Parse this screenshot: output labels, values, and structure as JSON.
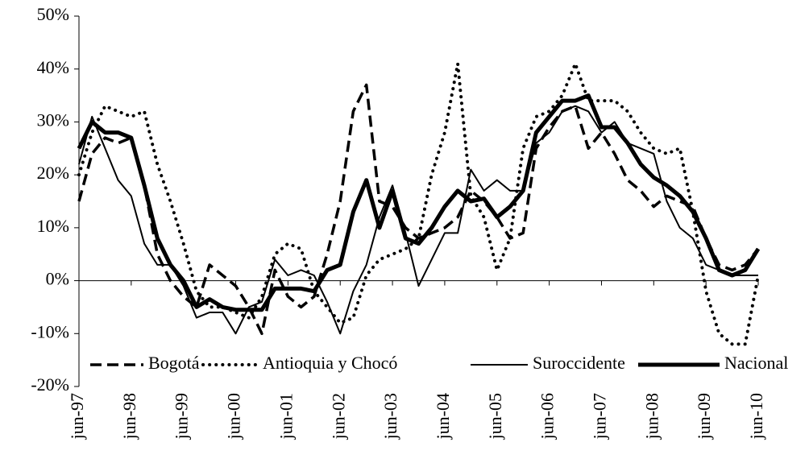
{
  "chart_data": {
    "type": "line",
    "categories": [
      "jun-97",
      null,
      null,
      null,
      "jun-98",
      null,
      null,
      null,
      "jun-99",
      null,
      null,
      null,
      "jun-00",
      null,
      null,
      null,
      "jun-01",
      null,
      null,
      null,
      "jun-02",
      null,
      null,
      null,
      "jun-03",
      null,
      null,
      null,
      "jun-04",
      null,
      null,
      null,
      "jun-05",
      null,
      null,
      null,
      "jun-06",
      null,
      null,
      null,
      "jun-07",
      null,
      null,
      null,
      "jun-08",
      null,
      null,
      null,
      "jun-09",
      null,
      null,
      null,
      "jun-10"
    ],
    "series": [
      {
        "name": "Bogotá",
        "color": "#000000",
        "line_style": "dashed",
        "values": [
          15,
          24,
          27,
          26,
          27,
          18,
          5,
          0,
          -3,
          -5,
          3,
          1,
          -1,
          -5,
          -10,
          2,
          -3,
          -5,
          -3,
          5,
          15,
          32,
          37,
          15,
          14,
          10,
          8,
          9,
          10,
          12,
          17,
          15,
          12,
          8,
          9,
          25,
          29,
          32,
          33,
          25,
          28,
          24,
          19,
          17,
          14,
          16,
          15,
          14,
          8,
          3,
          2,
          3,
          6
        ]
      },
      {
        "name": "Antioquia y Chocó",
        "color": "#000000",
        "line_style": "dotted",
        "values": [
          20,
          28,
          33,
          32,
          31,
          32,
          22,
          15,
          7,
          -2,
          -5,
          -5,
          -6,
          -7,
          -3,
          5,
          7,
          6,
          -2,
          -5,
          -8,
          -7,
          1,
          4,
          5,
          6,
          8,
          20,
          28,
          41,
          16,
          12,
          2,
          8,
          25,
          31,
          32,
          35,
          41,
          34,
          34,
          34,
          32,
          28,
          25,
          24,
          25,
          13,
          -2,
          -10,
          -12,
          -12,
          1
        ]
      },
      {
        "name": "Suroccidente",
        "color": "#000000",
        "line_style": "solid",
        "values": [
          22,
          31,
          25,
          19,
          16,
          7,
          3,
          3,
          -1,
          -7,
          -6,
          -6,
          -10,
          -5,
          -4,
          4,
          1,
          2,
          1,
          -4,
          -10,
          -2,
          3,
          12,
          18,
          9,
          -1,
          4,
          9,
          9,
          21,
          17,
          19,
          17,
          17,
          26,
          28,
          32,
          33,
          32,
          28,
          30,
          26,
          25,
          24,
          15,
          10,
          8,
          3,
          2,
          1,
          1,
          1
        ]
      },
      {
        "name": "Nacional",
        "color": "#000000",
        "line_style": "thick",
        "values": [
          25,
          30,
          28,
          28,
          27,
          18,
          8,
          3,
          0,
          -5,
          -3.5,
          -5,
          -5.5,
          -5.5,
          -5.5,
          -1.5,
          -1.5,
          -1.5,
          -2,
          2,
          3,
          13,
          19,
          10,
          17,
          8,
          7,
          10,
          14,
          17,
          15,
          15.5,
          12,
          14,
          17,
          28,
          31,
          34,
          34,
          35,
          29,
          29,
          26,
          22,
          19.5,
          18,
          16,
          13,
          8,
          2,
          1,
          2,
          6
        ]
      }
    ],
    "ylim": [
      -20,
      50
    ],
    "yticks": [
      {
        "value": -20,
        "label": "-20%"
      },
      {
        "value": -10,
        "label": "-10%"
      },
      {
        "value": 0,
        "label": "0%"
      },
      {
        "value": 10,
        "label": "10%"
      },
      {
        "value": 20,
        "label": "20%"
      },
      {
        "value": 30,
        "label": "30%"
      },
      {
        "value": 40,
        "label": "40%"
      },
      {
        "value": 50,
        "label": "50%"
      }
    ],
    "grid": false,
    "legend": "bottom"
  }
}
